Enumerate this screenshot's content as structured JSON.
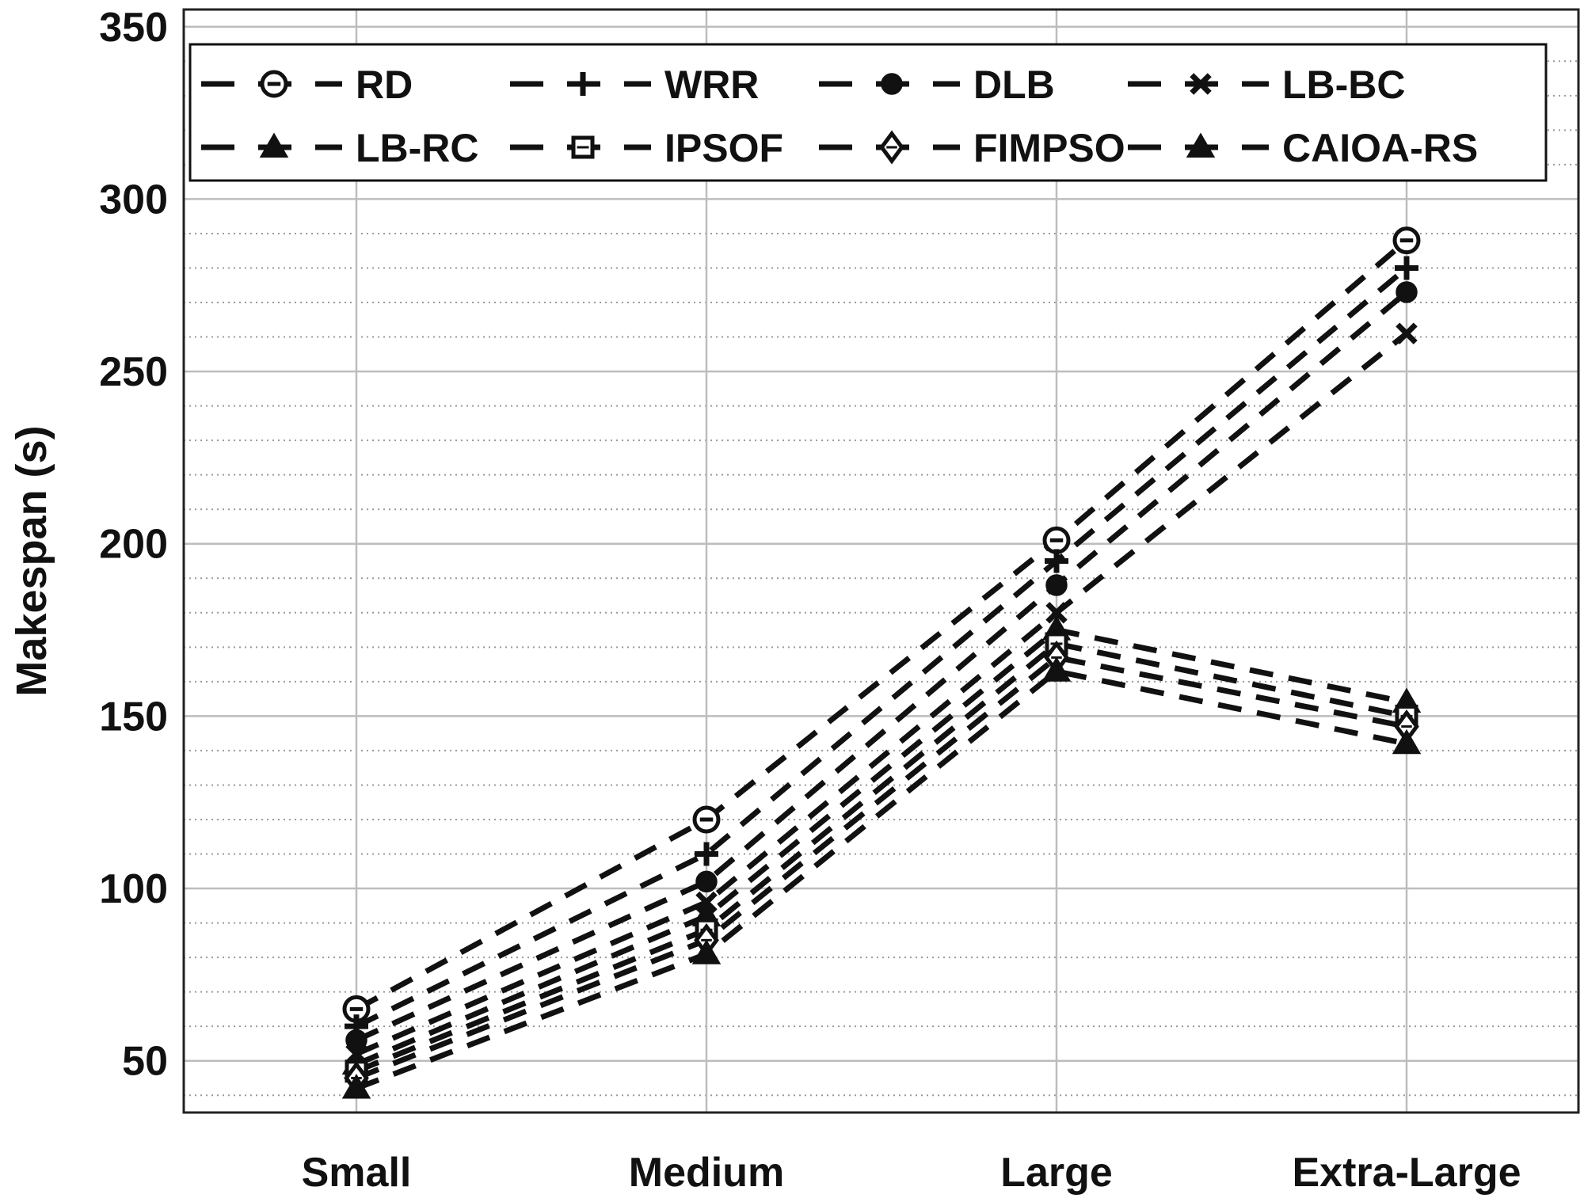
{
  "chart_data": {
    "type": "line",
    "title": "",
    "xlabel": "",
    "ylabel": "Makespan (s)",
    "categories": [
      "Small",
      "Medium",
      "Large",
      "Extra-Large"
    ],
    "ylim": [
      35,
      355
    ],
    "yticks": [
      50,
      100,
      150,
      200,
      250,
      300,
      350
    ],
    "grid": true,
    "minor_grid": true,
    "line_style": "dashed",
    "line_color": "#111111",
    "legend_position": "top",
    "legend_columns": 4,
    "series": [
      {
        "name": "RD",
        "marker": "circle-minus",
        "values": [
          65,
          120,
          201,
          288
        ]
      },
      {
        "name": "WRR",
        "marker": "plus",
        "values": [
          60,
          110,
          195,
          280
        ]
      },
      {
        "name": "DLB",
        "marker": "filled-circle",
        "values": [
          56,
          102,
          188,
          273
        ]
      },
      {
        "name": "LB-BC",
        "marker": "x",
        "values": [
          52,
          96,
          180,
          261
        ]
      },
      {
        "name": "LB-RC",
        "marker": "filled-triangle",
        "values": [
          49,
          92,
          175,
          154
        ]
      },
      {
        "name": "IPSOF",
        "marker": "square",
        "values": [
          47,
          88,
          171,
          150
        ]
      },
      {
        "name": "FIMPSO",
        "marker": "diamond",
        "values": [
          45,
          85,
          167,
          147
        ]
      },
      {
        "name": "CAIOA-RS",
        "marker": "filled-triangle",
        "values": [
          42,
          81,
          163,
          142
        ]
      }
    ]
  }
}
